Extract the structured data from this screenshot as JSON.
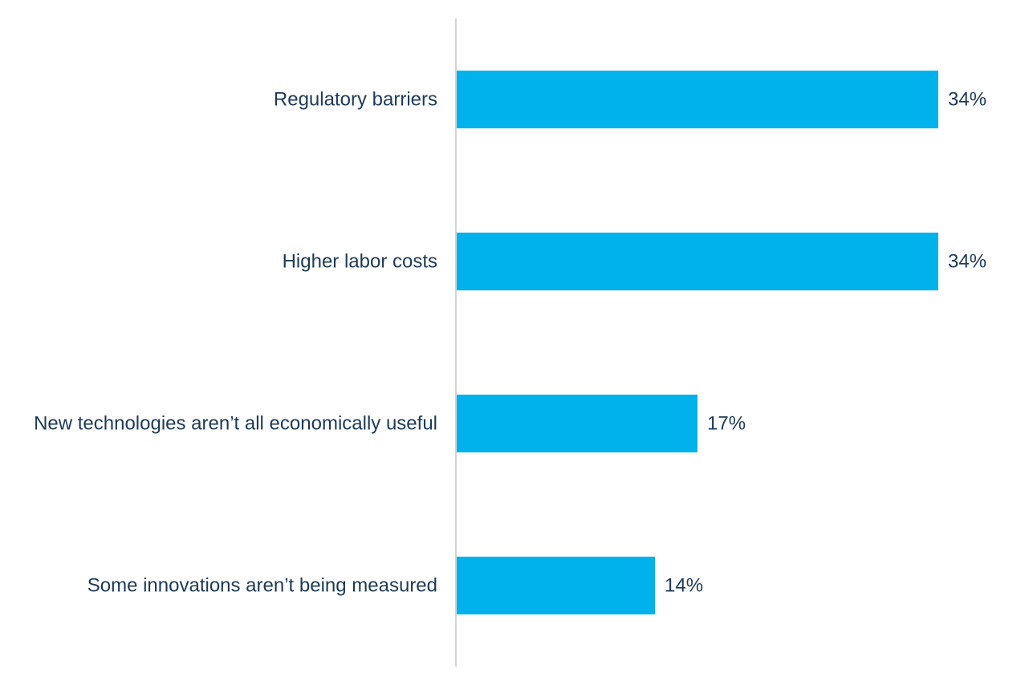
{
  "chart_data": {
    "type": "bar",
    "orientation": "horizontal",
    "categories": [
      "Regulatory barriers",
      "Higher labor costs",
      "New technologies aren’t all economically useful",
      "Some innovations aren’t being measured"
    ],
    "values": [
      34,
      34,
      17,
      14
    ],
    "value_labels": [
      "34%",
      "34%",
      "17%",
      "14%"
    ],
    "unit": "%",
    "xlim": [
      0,
      34
    ],
    "grid": false,
    "legend": "none",
    "colors": {
      "bar": "#00b2ec",
      "axis": "#d4d4d4",
      "text": "#1e3a57"
    }
  }
}
